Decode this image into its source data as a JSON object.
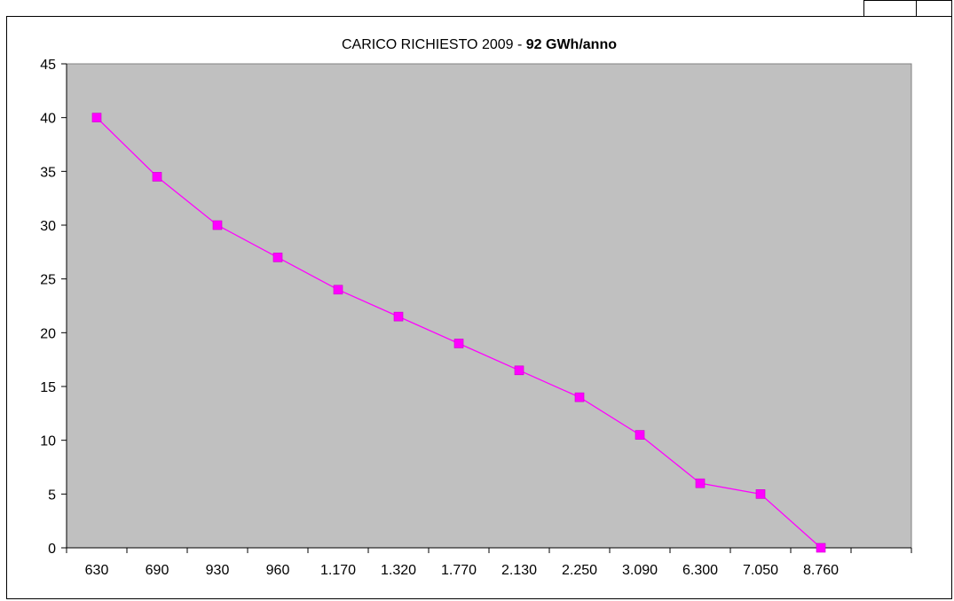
{
  "chart_data": {
    "type": "line",
    "title_main": "CARICO RICHIESTO 2009 - ",
    "title_bold": "92 GWh/anno",
    "categories": [
      "630",
      "690",
      "930",
      "960",
      "1.170",
      "1.320",
      "1.770",
      "2.130",
      "2.250",
      "3.090",
      "6.300",
      "7.050",
      "8.760"
    ],
    "values": [
      40,
      34.5,
      30,
      27,
      24,
      21.5,
      19,
      16.5,
      14,
      10.5,
      6,
      5,
      0
    ],
    "yticks": [
      "0",
      "5",
      "10",
      "15",
      "20",
      "25",
      "30",
      "35",
      "40",
      "45"
    ],
    "ylim": [
      0,
      45
    ],
    "extra_empty_category_slots": 1,
    "grid": false,
    "legend": "none",
    "colors": {
      "plot_background": "#c0c0c0",
      "series_line": "#ff00ff",
      "marker": "#ff00ff",
      "axis": "#000000"
    }
  }
}
